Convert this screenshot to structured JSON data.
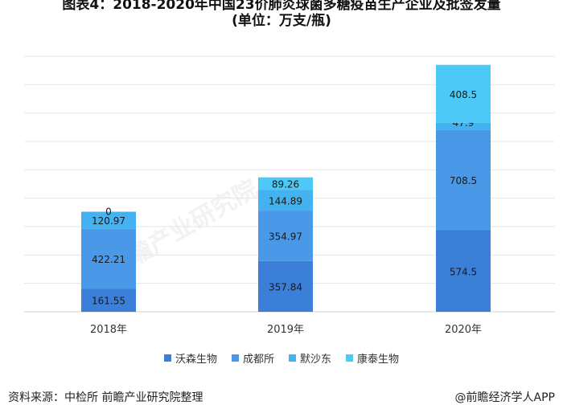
{
  "title": {
    "line1": "图表4：2018-2020年中国23价肺炎球菌多糖疫苗生产企业及批签发量",
    "line2": "(单位：万支/瓶)"
  },
  "chart_data": {
    "type": "bar",
    "stacked": true,
    "categories": [
      "2018年",
      "2019年",
      "2020年"
    ],
    "series": [
      {
        "name": "沃森生物",
        "color": "#3b7fd8",
        "values": [
          161.55,
          357.84,
          574.5
        ]
      },
      {
        "name": "成都所",
        "color": "#4a98e8",
        "values": [
          422.21,
          354.97,
          708.5
        ]
      },
      {
        "name": "默沙东",
        "color": "#44b2f0",
        "values": [
          120.97,
          144.89,
          47.9
        ]
      },
      {
        "name": "康泰生物",
        "color": "#4cc9f6",
        "values": [
          0,
          89.26,
          408.5
        ]
      }
    ],
    "ylim": [
      0,
      1800
    ],
    "grid": true,
    "legend": "bottom"
  },
  "footer": {
    "source": "资料来源：中检所 前瞻产业研究院整理",
    "credit": "@前瞻经济学人APP"
  },
  "watermark": {
    "text": "前瞻产业研究院"
  }
}
